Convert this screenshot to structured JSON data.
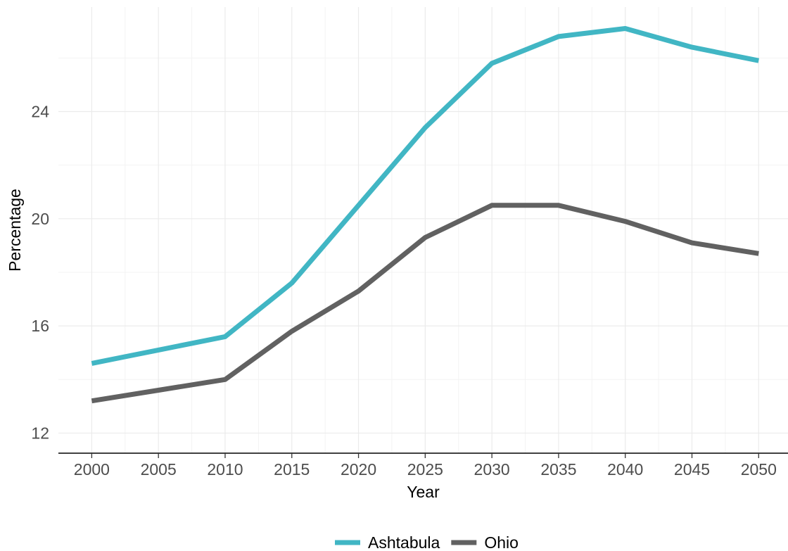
{
  "chart_data": {
    "type": "line",
    "title": "",
    "xlabel": "Year",
    "ylabel": "Percentage",
    "x": [
      2000,
      2005,
      2010,
      2015,
      2020,
      2025,
      2030,
      2035,
      2040,
      2045,
      2050
    ],
    "x_ticks": [
      "2000",
      "2005",
      "2010",
      "2015",
      "2020",
      "2025",
      "2030",
      "2035",
      "2040",
      "2045",
      "2050"
    ],
    "y_ticks": [
      "12",
      "16",
      "20",
      "24"
    ],
    "xlim": [
      1997.5,
      2052.2
    ],
    "ylim": [
      11.25,
      27.9
    ],
    "grid": true,
    "legend_position": "bottom",
    "series": [
      {
        "name": "Ashtabula",
        "color": "#41B6C4",
        "values": [
          14.6,
          15.1,
          15.6,
          17.6,
          20.5,
          23.4,
          25.8,
          26.8,
          27.1,
          26.4,
          25.9
        ]
      },
      {
        "name": "Ohio",
        "color": "#616161",
        "values": [
          13.2,
          13.6,
          14.0,
          15.8,
          17.3,
          19.3,
          20.5,
          20.5,
          19.9,
          19.1,
          18.7
        ]
      }
    ]
  }
}
